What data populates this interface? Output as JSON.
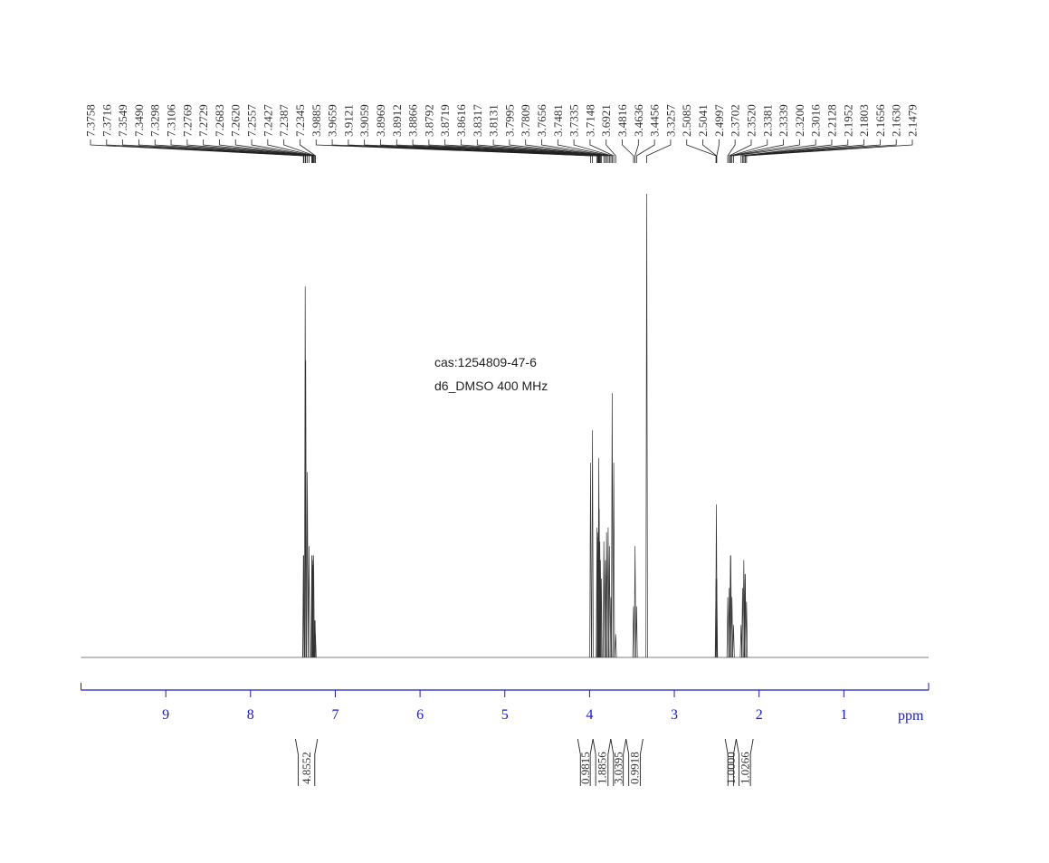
{
  "chart_data": {
    "type": "nmr",
    "annotations": [
      "cas:1254809-47-6",
      "d6_DMSO  400 MHz"
    ],
    "x_label": "ppm",
    "xlim": [
      10,
      0
    ],
    "xticks": [
      9,
      8,
      7,
      6,
      5,
      4,
      3,
      2,
      1
    ],
    "ylim": [
      0,
      100
    ],
    "peaks": {
      "x": [
        7.3758,
        7.3716,
        7.3549,
        7.349,
        7.3298,
        7.3106,
        7.2769,
        7.2729,
        7.2683,
        7.262,
        7.2557,
        7.2427,
        7.2387,
        7.2345,
        3.9885,
        3.9659,
        3.9121,
        3.9059,
        3.8969,
        3.8912,
        3.8866,
        3.8792,
        3.8719,
        3.8616,
        3.8317,
        3.8131,
        3.7995,
        3.7809,
        3.7656,
        3.7481,
        3.7335,
        3.7148,
        3.6921,
        3.4816,
        3.4636,
        3.4456,
        3.3257,
        2.5085,
        2.5041,
        2.4997,
        2.3702,
        2.352,
        2.3381,
        2.3339,
        2.32,
        2.3016,
        2.2128,
        2.1952,
        2.1803,
        2.1656,
        2.163,
        2.1479
      ],
      "peak_labels": [
        "7.3758",
        "7.3716",
        "7.3549",
        "7.3490",
        "7.3298",
        "7.3106",
        "7.2769",
        "7.2729",
        "7.2683",
        "7.2620",
        "7.2557",
        "7.2427",
        "7.2387",
        "7.2345",
        "3.9885",
        "3.9659",
        "3.9121",
        "3.9059",
        "3.8969",
        "3.8912",
        "3.8866",
        "3.8792",
        "3.8719",
        "3.8616",
        "3.8317",
        "3.8131",
        "3.7995",
        "3.7809",
        "3.7656",
        "3.7481",
        "3.7335",
        "3.7148",
        "3.6921",
        "3.4816",
        "3.4636",
        "3.4456",
        "3.3257",
        "2.5085",
        "2.5041",
        "2.4997",
        "2.3702",
        "2.3520",
        "2.3381",
        "2.3339",
        "2.3200",
        "2.3016",
        "2.2128",
        "2.1952",
        "2.1803",
        "2.1656",
        "2.1630",
        "2.1479"
      ],
      "values": [
        22,
        22,
        80,
        64,
        40,
        24,
        22,
        22,
        21,
        20,
        22,
        8,
        8,
        5,
        42,
        49,
        28,
        27,
        26,
        43,
        32,
        25,
        21,
        17,
        25,
        21,
        27,
        28,
        24,
        13,
        57,
        42,
        5,
        11,
        24,
        11,
        100,
        17,
        33,
        17,
        13,
        15,
        22,
        22,
        13,
        7,
        7,
        15,
        21,
        18,
        18,
        12
      ]
    },
    "integrals": {
      "values": [
        4.8552,
        0.9815,
        1.8856,
        3.0395,
        0.9918,
        1.0,
        1.0266
      ],
      "value_labels": [
        "4.8552",
        "0.9815",
        "1.8856",
        "3.0395",
        "0.9918",
        "1.0000",
        "1.0266"
      ],
      "ranges": [
        [
          7.47,
          7.21
        ],
        [
          4.14,
          3.96
        ],
        [
          3.96,
          3.75
        ],
        [
          3.75,
          3.57
        ],
        [
          3.57,
          3.37
        ],
        [
          2.4,
          2.27
        ],
        [
          2.27,
          2.07
        ]
      ]
    }
  }
}
